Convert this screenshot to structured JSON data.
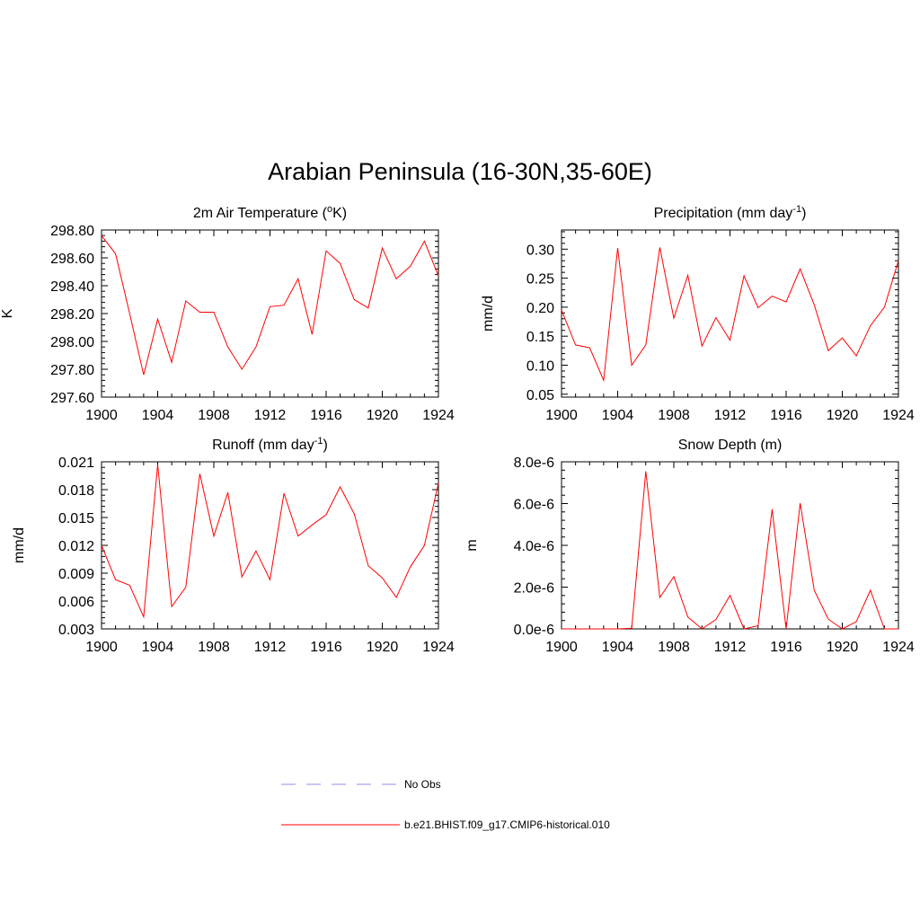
{
  "figure": {
    "title": "Arabian Peninsula (16-30N,35-60E)",
    "line_color": "#ff0000",
    "obs_color": "#8c8cf0"
  },
  "legend": [
    {
      "label": "No Obs",
      "style": "dashed",
      "color": "#8c8cf0"
    },
    {
      "label": "b.e21.BHIST.f09_g17.CMIP6-historical.010",
      "style": "solid",
      "color": "#ff0000"
    }
  ],
  "chart_data": [
    {
      "type": "line",
      "title": "2m Air Temperature (°K)",
      "title_parts": {
        "base": "2m Air Temperature (",
        "sup": "o",
        "tail": "K)"
      },
      "ylabel": "K",
      "xlim": [
        1900,
        1924
      ],
      "ylim": [
        297.6,
        298.8
      ],
      "xticks": [
        1900,
        1904,
        1908,
        1912,
        1916,
        1920,
        1924
      ],
      "yticks": [
        297.6,
        297.8,
        298.0,
        298.2,
        298.4,
        298.6,
        298.8
      ],
      "ytick_labels": [
        "297.60",
        "297.80",
        "298.00",
        "298.20",
        "298.40",
        "298.60",
        "298.80"
      ],
      "x": [
        1900,
        1901,
        1902,
        1903,
        1904,
        1905,
        1906,
        1907,
        1908,
        1909,
        1910,
        1911,
        1912,
        1913,
        1914,
        1915,
        1916,
        1917,
        1918,
        1919,
        1920,
        1921,
        1922,
        1923,
        1924
      ],
      "values": [
        298.76,
        298.63,
        298.2,
        297.76,
        298.16,
        297.85,
        298.29,
        298.21,
        298.21,
        297.96,
        297.8,
        297.96,
        298.25,
        298.26,
        298.45,
        298.05,
        298.65,
        298.56,
        298.3,
        298.24,
        298.67,
        298.45,
        298.54,
        298.72,
        298.47
      ]
    },
    {
      "type": "line",
      "title": "Precipitation (mm day-1)",
      "title_parts": {
        "base": "Precipitation (mm day",
        "sup": "-1",
        "tail": ")"
      },
      "ylabel": "mm/d",
      "xlim": [
        1900,
        1924
      ],
      "ylim": [
        0.045,
        0.333
      ],
      "xticks": [
        1900,
        1904,
        1908,
        1912,
        1916,
        1920,
        1924
      ],
      "yticks": [
        0.05,
        0.1,
        0.15,
        0.2,
        0.25,
        0.3
      ],
      "ytick_labels": [
        "0.05",
        "0.10",
        "0.15",
        "0.20",
        "0.25",
        "0.30"
      ],
      "x": [
        1900,
        1901,
        1902,
        1903,
        1904,
        1905,
        1906,
        1907,
        1908,
        1909,
        1910,
        1911,
        1912,
        1913,
        1914,
        1915,
        1916,
        1917,
        1918,
        1919,
        1920,
        1921,
        1922,
        1923,
        1924
      ],
      "values": [
        0.195,
        0.135,
        0.13,
        0.074,
        0.302,
        0.1,
        0.135,
        0.303,
        0.181,
        0.255,
        0.133,
        0.182,
        0.143,
        0.254,
        0.199,
        0.219,
        0.209,
        0.266,
        0.204,
        0.125,
        0.147,
        0.116,
        0.168,
        0.2,
        0.28
      ]
    },
    {
      "type": "line",
      "title": "Runoff (mm day-1)",
      "title_parts": {
        "base": "Runoff (mm day",
        "sup": "-1",
        "tail": ")"
      },
      "ylabel": "mm/d",
      "xlim": [
        1900,
        1924
      ],
      "ylim": [
        0.003,
        0.021
      ],
      "xticks": [
        1900,
        1904,
        1908,
        1912,
        1916,
        1920,
        1924
      ],
      "yticks": [
        0.003,
        0.006,
        0.009,
        0.012,
        0.015,
        0.018,
        0.021
      ],
      "ytick_labels": [
        "0.003",
        "0.006",
        "0.009",
        "0.012",
        "0.015",
        "0.018",
        "0.021"
      ],
      "x": [
        1900,
        1901,
        1902,
        1903,
        1904,
        1905,
        1906,
        1907,
        1908,
        1909,
        1910,
        1911,
        1912,
        1913,
        1914,
        1915,
        1916,
        1917,
        1918,
        1919,
        1920,
        1921,
        1922,
        1923,
        1924
      ],
      "values": [
        0.012,
        0.0083,
        0.0077,
        0.0043,
        0.0207,
        0.0054,
        0.0075,
        0.0197,
        0.013,
        0.0177,
        0.0086,
        0.0114,
        0.0083,
        0.0176,
        0.013,
        0.0142,
        0.0153,
        0.0183,
        0.0154,
        0.0098,
        0.0085,
        0.0064,
        0.0097,
        0.012,
        0.0187
      ]
    },
    {
      "type": "line",
      "title": "Snow Depth (m)",
      "title_parts": {
        "base": "Snow Depth (m)",
        "sup": "",
        "tail": ""
      },
      "ylabel": "m",
      "xlim": [
        1900,
        1924
      ],
      "ylim": [
        0,
        8e-06
      ],
      "xticks": [
        1900,
        1904,
        1908,
        1912,
        1916,
        1920,
        1924
      ],
      "yticks": [
        0,
        2e-06,
        4e-06,
        6e-06,
        8e-06
      ],
      "ytick_labels": [
        "0.0e-6",
        "2.0e-6",
        "4.0e-6",
        "6.0e-6",
        "8.0e-6"
      ],
      "x": [
        1900,
        1901,
        1902,
        1903,
        1904,
        1905,
        1906,
        1907,
        1908,
        1909,
        1910,
        1911,
        1912,
        1913,
        1914,
        1915,
        1916,
        1917,
        1918,
        1919,
        1920,
        1921,
        1922,
        1923,
        1924
      ],
      "values": [
        0,
        0,
        0,
        0,
        0,
        3e-08,
        7.55e-06,
        1.5e-06,
        2.5e-06,
        5.7e-07,
        0,
        4.5e-07,
        1.6e-06,
        0,
        1.5e-07,
        5.73e-06,
        0,
        6.02e-06,
        1.85e-06,
        4.7e-07,
        0,
        3.5e-07,
        1.85e-06,
        0,
        0
      ]
    }
  ]
}
